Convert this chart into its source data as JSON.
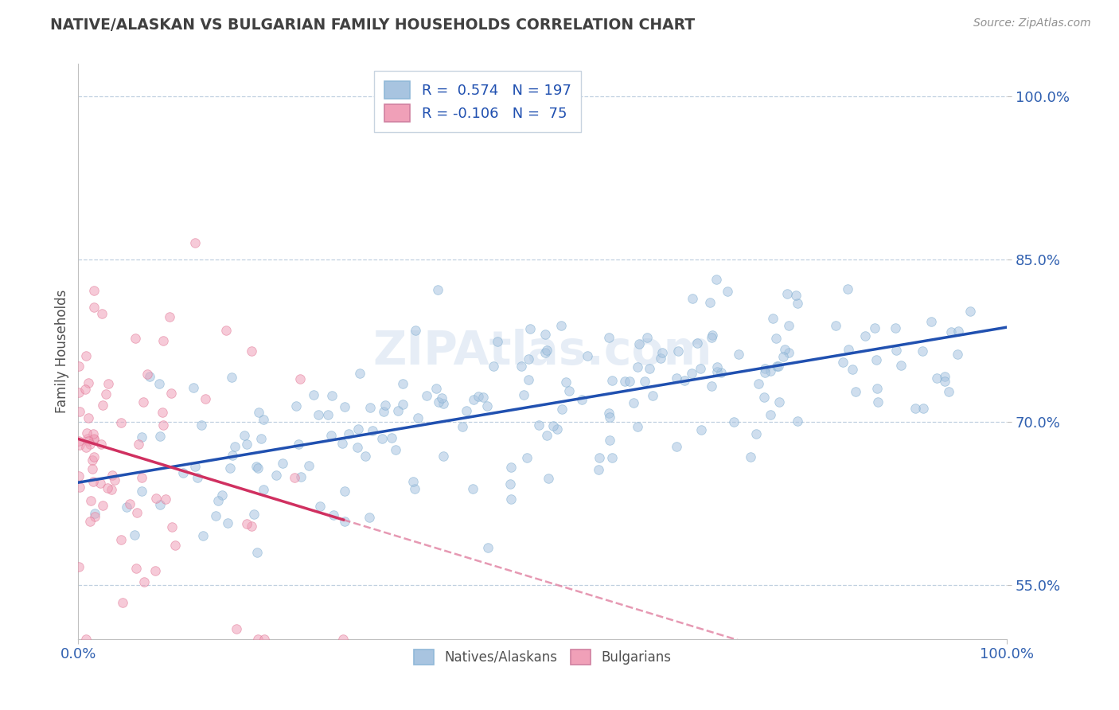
{
  "title": "NATIVE/ALASKAN VS BULGARIAN FAMILY HOUSEHOLDS CORRELATION CHART",
  "source": "Source: ZipAtlas.com",
  "ylabel": "Family Households",
  "xlim": [
    0.0,
    1.0
  ],
  "ylim": [
    0.5,
    1.03
  ],
  "yticks": [
    0.55,
    0.7,
    0.85,
    1.0
  ],
  "ytick_labels": [
    "55.0%",
    "70.0%",
    "85.0%",
    "100.0%"
  ],
  "xticks": [
    0.0,
    1.0
  ],
  "xtick_labels": [
    "0.0%",
    "100.0%"
  ],
  "blue_color": "#a8c4e0",
  "blue_edge_color": "#7aabcf",
  "pink_color": "#f0a0b8",
  "pink_edge_color": "#e07090",
  "blue_line_color": "#2050b0",
  "pink_line_color": "#d03060",
  "pink_dash_color": "#e080a0",
  "blue_R": 0.574,
  "blue_N": 197,
  "pink_R": -0.106,
  "pink_N": 75,
  "watermark": "ZIPAtlas.com",
  "legend_label_blue": "Natives/Alaskans",
  "legend_label_pink": "Bulgarians",
  "background_color": "#ffffff",
  "grid_color": "#c0d0e0",
  "title_color": "#404040",
  "source_color": "#909090",
  "legend_text_color": "#2050b0",
  "axis_tick_color": "#3060b0"
}
